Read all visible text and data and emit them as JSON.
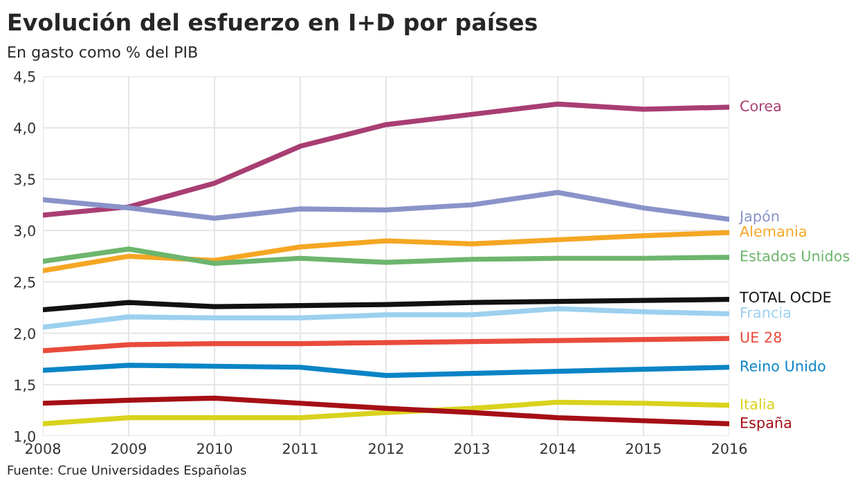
{
  "chart_data": {
    "type": "line",
    "title": "Evolución del esfuerzo en I+D por países",
    "subtitle": "En gasto como % del PIB",
    "annotations": [
      "Fuente: Crue Universidades Españolas"
    ],
    "x": [
      2008,
      2009,
      2010,
      2011,
      2012,
      2013,
      2014,
      2015,
      2016
    ],
    "xlim": [
      2008,
      2016
    ],
    "xticks": [
      2008,
      2009,
      2010,
      2011,
      2012,
      2013,
      2014,
      2015,
      2016
    ],
    "ylim": [
      1.0,
      4.5
    ],
    "yticks": [
      {
        "value": 1.0,
        "label": "1,0"
      },
      {
        "value": 1.5,
        "label": "1,5"
      },
      {
        "value": 2.0,
        "label": "2,0"
      },
      {
        "value": 2.5,
        "label": "2,5"
      },
      {
        "value": 3.0,
        "label": "3,0"
      },
      {
        "value": 3.5,
        "label": "3,5"
      },
      {
        "value": 4.0,
        "label": "4,0"
      },
      {
        "value": 4.5,
        "label": "4,5"
      }
    ],
    "grid": true,
    "legend": false,
    "marker": "none",
    "line_style": "solid",
    "series": [
      {
        "name": "Corea",
        "color": "#a83e72",
        "values": [
          3.15,
          3.23,
          3.46,
          3.82,
          4.03,
          4.13,
          4.23,
          4.18,
          4.2
        ]
      },
      {
        "name": "Japón",
        "color": "#8a93c9",
        "values": [
          3.3,
          3.22,
          3.12,
          3.21,
          3.2,
          3.25,
          3.37,
          3.22,
          3.11
        ]
      },
      {
        "name": "Alemania",
        "color": "#f5a623",
        "values": [
          2.61,
          2.75,
          2.71,
          2.84,
          2.9,
          2.87,
          2.91,
          2.95,
          2.98
        ]
      },
      {
        "name": "Estados Unidos",
        "color": "#6db56d",
        "values": [
          2.7,
          2.82,
          2.68,
          2.73,
          2.69,
          2.72,
          2.73,
          2.73,
          2.74
        ]
      },
      {
        "name": "TOTAL OCDE",
        "color": "#111111",
        "values": [
          2.23,
          2.3,
          2.26,
          2.27,
          2.28,
          2.3,
          2.31,
          2.32,
          2.33
        ]
      },
      {
        "name": "Francia",
        "color": "#9cd0ef",
        "values": [
          2.06,
          2.16,
          2.15,
          2.15,
          2.18,
          2.18,
          2.24,
          2.21,
          2.19
        ]
      },
      {
        "name": "UE 28",
        "color": "#e94b3c",
        "values": [
          1.83,
          1.89,
          1.9,
          1.9,
          1.91,
          1.92,
          1.93,
          1.94,
          1.95
        ]
      },
      {
        "name": "Reino Unido",
        "color": "#0a84c6",
        "values": [
          1.64,
          1.69,
          1.68,
          1.67,
          1.59,
          1.61,
          1.63,
          1.65,
          1.67
        ]
      },
      {
        "name": "Italia",
        "color": "#d9d21d",
        "values": [
          1.12,
          1.18,
          1.18,
          1.18,
          1.23,
          1.27,
          1.33,
          1.32,
          1.3
        ]
      },
      {
        "name": "España",
        "color": "#a50f15",
        "values": [
          1.32,
          1.35,
          1.37,
          1.32,
          1.27,
          1.23,
          1.18,
          1.15,
          1.12
        ]
      }
    ]
  }
}
